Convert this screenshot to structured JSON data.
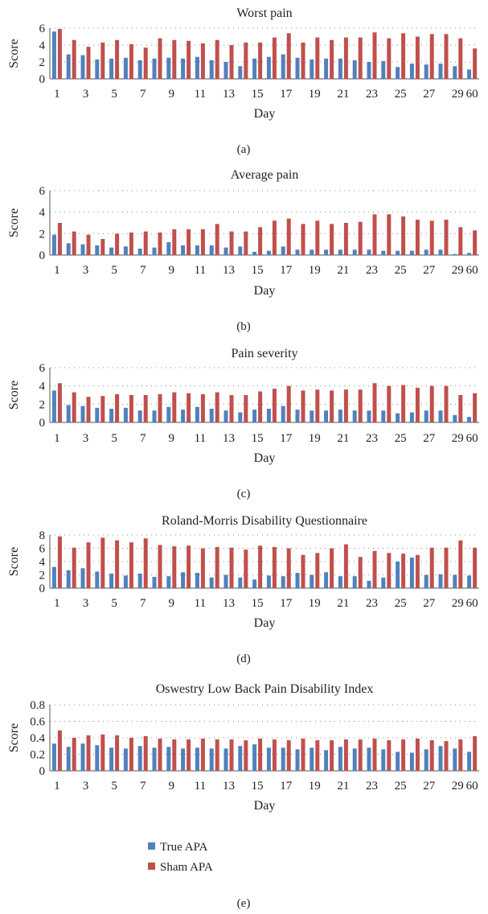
{
  "colors": {
    "true_apa": "#4f81bd",
    "sham_apa": "#c0504d"
  },
  "legend": {
    "items": [
      {
        "label": "True APA"
      },
      {
        "label": "Sham APA"
      }
    ]
  },
  "chart_data": [
    {
      "type": "bar",
      "panel_label": "(a)",
      "title": "Worst pain",
      "xlabel": "Day",
      "ylabel": "Score",
      "ylim": [
        0,
        6
      ],
      "yticks": [
        0,
        2,
        4,
        6
      ],
      "grid": true,
      "categories": [
        "1",
        "2",
        "3",
        "4",
        "5",
        "6",
        "7",
        "8",
        "9",
        "10",
        "11",
        "12",
        "13",
        "14",
        "15",
        "16",
        "17",
        "18",
        "19",
        "20",
        "21",
        "22",
        "23",
        "24",
        "25",
        "26",
        "27",
        "28",
        "29",
        "60"
      ],
      "tick_labels": [
        "1",
        "3",
        "5",
        "7",
        "9",
        "11",
        "13",
        "15",
        "17",
        "19",
        "21",
        "23",
        "25",
        "27",
        "29",
        "60"
      ],
      "series": [
        {
          "name": "True APA",
          "values": [
            5.6,
            2.9,
            2.8,
            2.3,
            2.4,
            2.5,
            2.2,
            2.4,
            2.5,
            2.4,
            2.6,
            2.2,
            2.0,
            1.5,
            2.4,
            2.6,
            2.9,
            2.5,
            2.3,
            2.4,
            2.4,
            2.2,
            2.0,
            2.1,
            1.4,
            1.8,
            1.7,
            1.8,
            1.5,
            1.1
          ]
        },
        {
          "name": "Sham APA",
          "values": [
            5.9,
            4.6,
            3.8,
            4.3,
            4.6,
            4.1,
            3.7,
            4.8,
            4.6,
            4.5,
            4.2,
            4.6,
            4.0,
            4.3,
            4.3,
            4.9,
            5.4,
            4.3,
            4.9,
            4.6,
            4.9,
            4.9,
            5.5,
            4.8,
            5.4,
            5.0,
            5.3,
            5.3,
            4.8,
            3.6
          ]
        }
      ]
    },
    {
      "type": "bar",
      "panel_label": "(b)",
      "title": "Average pain",
      "xlabel": "Day",
      "ylabel": "Score",
      "ylim": [
        0,
        6
      ],
      "yticks": [
        0,
        2,
        4,
        6
      ],
      "grid": true,
      "categories": [
        "1",
        "2",
        "3",
        "4",
        "5",
        "6",
        "7",
        "8",
        "9",
        "10",
        "11",
        "12",
        "13",
        "14",
        "15",
        "16",
        "17",
        "18",
        "19",
        "20",
        "21",
        "22",
        "23",
        "24",
        "25",
        "26",
        "27",
        "28",
        "29",
        "60"
      ],
      "tick_labels": [
        "1",
        "3",
        "5",
        "7",
        "9",
        "11",
        "13",
        "15",
        "17",
        "19",
        "21",
        "23",
        "25",
        "27",
        "29",
        "60"
      ],
      "series": [
        {
          "name": "True APA",
          "values": [
            1.9,
            1.1,
            1.0,
            0.9,
            0.7,
            0.8,
            0.6,
            0.7,
            1.2,
            0.9,
            0.9,
            0.9,
            0.7,
            0.8,
            0.3,
            0.4,
            0.8,
            0.5,
            0.5,
            0.5,
            0.5,
            0.5,
            0.5,
            0.4,
            0.4,
            0.4,
            0.5,
            0.5,
            0.1,
            0.2
          ]
        },
        {
          "name": "Sham APA",
          "values": [
            3.0,
            2.2,
            1.9,
            1.5,
            2.0,
            2.1,
            2.2,
            2.1,
            2.4,
            2.4,
            2.4,
            2.9,
            2.2,
            2.2,
            2.6,
            3.2,
            3.4,
            2.9,
            3.2,
            2.9,
            3.0,
            3.1,
            3.8,
            3.8,
            3.6,
            3.3,
            3.2,
            3.3,
            2.6,
            2.3
          ]
        }
      ]
    },
    {
      "type": "bar",
      "panel_label": "(c)",
      "title": "Pain severity",
      "xlabel": "Day",
      "ylabel": "Score",
      "ylim": [
        0,
        6
      ],
      "yticks": [
        0,
        2,
        4,
        6
      ],
      "grid": true,
      "categories": [
        "1",
        "2",
        "3",
        "4",
        "5",
        "6",
        "7",
        "8",
        "9",
        "10",
        "11",
        "12",
        "13",
        "14",
        "15",
        "16",
        "17",
        "18",
        "19",
        "20",
        "21",
        "22",
        "23",
        "24",
        "25",
        "26",
        "27",
        "28",
        "29",
        "60"
      ],
      "tick_labels": [
        "1",
        "3",
        "5",
        "7",
        "9",
        "11",
        "13",
        "15",
        "17",
        "19",
        "21",
        "23",
        "25",
        "27",
        "29",
        "60"
      ],
      "series": [
        {
          "name": "True APA",
          "values": [
            3.5,
            1.9,
            1.8,
            1.6,
            1.5,
            1.6,
            1.3,
            1.3,
            1.7,
            1.4,
            1.7,
            1.5,
            1.3,
            1.1,
            1.4,
            1.5,
            1.8,
            1.4,
            1.3,
            1.3,
            1.4,
            1.3,
            1.3,
            1.3,
            1.0,
            1.1,
            1.3,
            1.3,
            0.8,
            0.6
          ]
        },
        {
          "name": "Sham APA",
          "values": [
            4.3,
            3.3,
            2.8,
            2.9,
            3.1,
            3.0,
            3.0,
            3.1,
            3.3,
            3.2,
            3.1,
            3.3,
            3.0,
            3.0,
            3.4,
            3.7,
            4.0,
            3.5,
            3.6,
            3.5,
            3.6,
            3.6,
            4.3,
            4.0,
            4.1,
            3.8,
            4.0,
            4.0,
            3.0,
            3.2
          ]
        }
      ]
    },
    {
      "type": "bar",
      "panel_label": "(d)",
      "title": "Roland-Morris Disability Questionnaire",
      "xlabel": "Day",
      "ylabel": "Score",
      "ylim": [
        0,
        8
      ],
      "yticks": [
        0,
        2,
        4,
        6,
        8
      ],
      "grid": true,
      "categories": [
        "1",
        "2",
        "3",
        "4",
        "5",
        "6",
        "7",
        "8",
        "9",
        "10",
        "11",
        "12",
        "13",
        "14",
        "15",
        "16",
        "17",
        "18",
        "19",
        "20",
        "21",
        "22",
        "23",
        "24",
        "25",
        "26",
        "27",
        "28",
        "29",
        "60"
      ],
      "tick_labels": [
        "1",
        "3",
        "5",
        "7",
        "9",
        "11",
        "13",
        "15",
        "17",
        "19",
        "21",
        "23",
        "25",
        "27",
        "29",
        "60"
      ],
      "series": [
        {
          "name": "True APA",
          "values": [
            3.2,
            2.7,
            3.0,
            2.5,
            2.2,
            1.9,
            2.2,
            1.7,
            1.8,
            2.4,
            2.3,
            1.6,
            2.0,
            1.6,
            1.3,
            1.9,
            1.8,
            2.3,
            2.0,
            2.4,
            1.8,
            1.8,
            1.1,
            1.6,
            4.0,
            4.6,
            2.0,
            2.1,
            2.0,
            1.9
          ]
        },
        {
          "name": "Sham APA",
          "values": [
            7.8,
            6.1,
            6.9,
            7.6,
            7.2,
            6.9,
            7.5,
            6.5,
            6.3,
            6.4,
            6.0,
            6.2,
            6.1,
            5.8,
            6.4,
            6.2,
            6.0,
            5.0,
            5.3,
            6.0,
            6.6,
            4.7,
            5.6,
            5.3,
            5.2,
            5.0,
            6.1,
            6.1,
            7.2,
            6.1
          ]
        }
      ]
    },
    {
      "type": "bar",
      "panel_label": "(e)",
      "title": "Oswestry Low Back Pain Disability Index",
      "xlabel": "Day",
      "ylabel": "Score",
      "ylim": [
        0,
        0.8
      ],
      "yticks": [
        0,
        0.2,
        0.4,
        0.6,
        0.8
      ],
      "grid": true,
      "categories": [
        "1",
        "2",
        "3",
        "4",
        "5",
        "6",
        "7",
        "8",
        "9",
        "10",
        "11",
        "12",
        "13",
        "14",
        "15",
        "16",
        "17",
        "18",
        "19",
        "20",
        "21",
        "22",
        "23",
        "24",
        "25",
        "26",
        "27",
        "28",
        "29",
        "60"
      ],
      "tick_labels": [
        "1",
        "3",
        "5",
        "7",
        "9",
        "11",
        "13",
        "15",
        "17",
        "19",
        "21",
        "23",
        "25",
        "27",
        "29",
        "60"
      ],
      "series": [
        {
          "name": "True APA",
          "values": [
            0.33,
            0.29,
            0.33,
            0.31,
            0.28,
            0.27,
            0.3,
            0.28,
            0.29,
            0.27,
            0.28,
            0.27,
            0.27,
            0.3,
            0.32,
            0.28,
            0.28,
            0.26,
            0.28,
            0.25,
            0.29,
            0.27,
            0.28,
            0.26,
            0.23,
            0.22,
            0.26,
            0.3,
            0.27,
            0.23
          ]
        },
        {
          "name": "Sham APA",
          "values": [
            0.49,
            0.4,
            0.43,
            0.44,
            0.43,
            0.4,
            0.42,
            0.39,
            0.38,
            0.38,
            0.39,
            0.38,
            0.38,
            0.37,
            0.39,
            0.38,
            0.37,
            0.39,
            0.37,
            0.37,
            0.38,
            0.38,
            0.39,
            0.37,
            0.38,
            0.39,
            0.37,
            0.36,
            0.38,
            0.42
          ]
        }
      ]
    }
  ]
}
